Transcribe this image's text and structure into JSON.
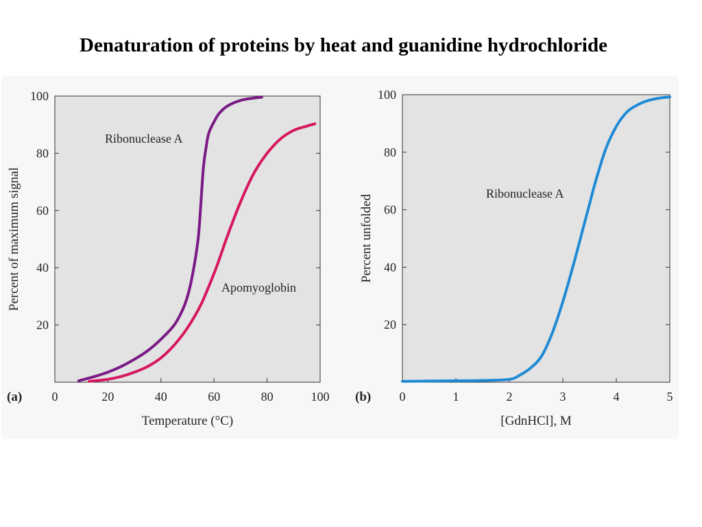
{
  "page": {
    "title": "Denaturation of proteins by heat and guanidine hydrochloride",
    "colors": {
      "plot_background": "#e3e3e3",
      "figure_background": "#f7f7f7",
      "ribonuclease_heat": "#7a1a86",
      "apomyoglobin": "#d6175f",
      "ribonuclease_gdnhcl": "#1f8ad4"
    }
  },
  "chart_data": [
    {
      "type": "line",
      "panel_label": "(a)",
      "title": "",
      "xlabel": "Temperature (°C)",
      "ylabel": "Percent of maximum signal",
      "xlim": [
        0,
        100
      ],
      "ylim": [
        0,
        100
      ],
      "xticks": [
        0,
        20,
        40,
        60,
        80,
        100
      ],
      "yticks": [
        20,
        40,
        60,
        80,
        100
      ],
      "grid": false,
      "series": [
        {
          "name": "Ribonuclease A",
          "color": "#7a1a86",
          "x": [
            9,
            15,
            20,
            25,
            30,
            35,
            40,
            45,
            48,
            50,
            52,
            54,
            55,
            56,
            57,
            58,
            60,
            62,
            65,
            70,
            75,
            78
          ],
          "y": [
            0.5,
            2,
            3.5,
            5.5,
            8,
            11,
            15,
            20,
            25,
            30,
            38,
            50,
            62,
            75,
            82,
            87,
            91,
            94,
            96.5,
            98.5,
            99.3,
            99.6
          ]
        },
        {
          "name": "Apomyoglobin",
          "color": "#d6175f",
          "x": [
            13,
            20,
            25,
            30,
            35,
            40,
            45,
            50,
            55,
            60,
            62,
            65,
            70,
            75,
            80,
            85,
            90,
            95,
            98
          ],
          "y": [
            0.3,
            1,
            2,
            3.5,
            5.5,
            8.5,
            13,
            19,
            27,
            38,
            43,
            51,
            63,
            73,
            80,
            85,
            88,
            89.5,
            90.3
          ]
        }
      ]
    },
    {
      "type": "line",
      "panel_label": "(b)",
      "title": "",
      "xlabel": "[GdnHCl], M",
      "ylabel": "Percent unfolded",
      "xlim": [
        0,
        5
      ],
      "ylim": [
        0,
        100
      ],
      "xticks": [
        0,
        1,
        2,
        3,
        4,
        5
      ],
      "yticks": [
        20,
        40,
        60,
        80,
        100
      ],
      "grid": false,
      "series": [
        {
          "name": "Ribonuclease A",
          "color": "#1f8ad4",
          "x": [
            0,
            0.5,
            1,
            1.5,
            2,
            2.2,
            2.4,
            2.6,
            2.8,
            3.0,
            3.2,
            3.4,
            3.5,
            3.6,
            3.8,
            4.0,
            4.2,
            4.4,
            4.6,
            4.8,
            5.0
          ],
          "y": [
            0.3,
            0.4,
            0.5,
            0.6,
            1,
            2.5,
            5,
            9,
            17,
            28,
            41,
            55,
            62,
            69,
            81,
            89,
            94,
            96.5,
            98,
            98.8,
            99.2
          ]
        }
      ]
    }
  ]
}
